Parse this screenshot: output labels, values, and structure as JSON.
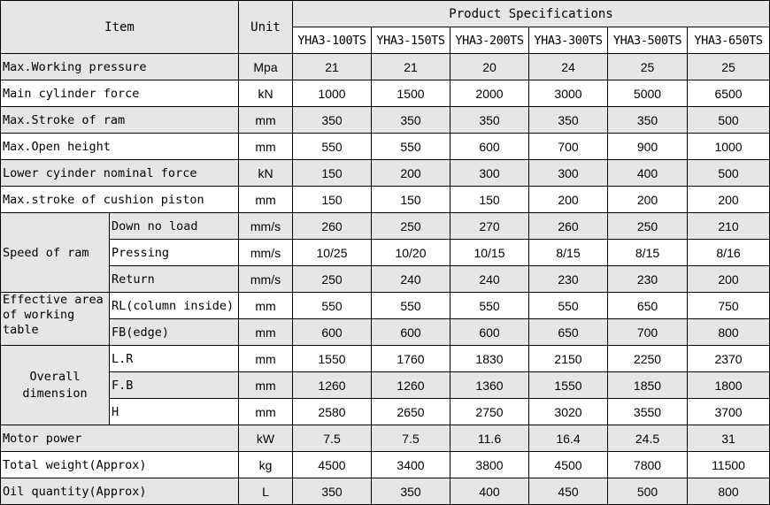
{
  "header": {
    "item": "Item",
    "unit": "Unit",
    "group": "Product Specifications",
    "models": [
      "YHA3-100TS",
      "YHA3-150TS",
      "YHA3-200TS",
      "YHA3-300TS",
      "YHA3-500TS",
      "YHA3-650TS"
    ]
  },
  "rows": [
    {
      "label": "Max.Working pressure",
      "unit": "Mpa",
      "values": [
        "21",
        "21",
        "20",
        "24",
        "25",
        "25"
      ]
    },
    {
      "label": "Main cylinder force",
      "unit": "kN",
      "values": [
        "1000",
        "1500",
        "2000",
        "3000",
        "5000",
        "6500"
      ]
    },
    {
      "label": "Max.Stroke of ram",
      "unit": "mm",
      "values": [
        "350",
        "350",
        "350",
        "350",
        "350",
        "500"
      ]
    },
    {
      "label": "Max.Open height",
      "unit": "mm",
      "values": [
        "550",
        "550",
        "600",
        "700",
        "900",
        "1000"
      ]
    },
    {
      "label": "Lower cyinder nominal force",
      "unit": "kN",
      "values": [
        "150",
        "200",
        "300",
        "300",
        "400",
        "500"
      ]
    },
    {
      "label": "Max.stroke of cushion piston",
      "unit": "mm",
      "values": [
        "150",
        "150",
        "150",
        "200",
        "200",
        "200"
      ]
    }
  ],
  "speed": {
    "label": "Speed of ram",
    "subs": [
      {
        "label": "Down no load",
        "unit": "mm/s",
        "values": [
          "260",
          "250",
          "270",
          "260",
          "250",
          "210"
        ]
      },
      {
        "label": "Pressing",
        "unit": "mm/s",
        "values": [
          "10/25",
          "10/20",
          "10/15",
          "8/15",
          "8/15",
          "8/16"
        ]
      },
      {
        "label": "Return",
        "unit": "mm/s",
        "values": [
          "250",
          "240",
          "240",
          "230",
          "230",
          "200"
        ]
      }
    ]
  },
  "area": {
    "label": "Effective area of working table",
    "subs": [
      {
        "label": "RL(column inside)",
        "unit": "mm",
        "values": [
          "550",
          "550",
          "550",
          "550",
          "650",
          "750"
        ]
      },
      {
        "label": "FB(edge)",
        "unit": "mm",
        "values": [
          "600",
          "600",
          "600",
          "650",
          "700",
          "800"
        ]
      }
    ]
  },
  "overall": {
    "label": "Overall dimension",
    "subs": [
      {
        "label": "L.R",
        "unit": "mm",
        "values": [
          "1550",
          "1760",
          "1830",
          "2150",
          "2250",
          "2370"
        ]
      },
      {
        "label": "F.B",
        "unit": "mm",
        "values": [
          "1260",
          "1260",
          "1360",
          "1550",
          "1850",
          "1800"
        ]
      },
      {
        "label": "H",
        "unit": "mm",
        "values": [
          "2580",
          "2650",
          "2750",
          "3020",
          "3550",
          "3700"
        ]
      }
    ]
  },
  "bottom": [
    {
      "label": "Motor power",
      "unit": "kW",
      "values": [
        "7.5",
        "7.5",
        "11.6",
        "16.4",
        "24.5",
        "31"
      ]
    },
    {
      "label": "Total weight(Approx)",
      "unit": "kg",
      "values": [
        "4500",
        "3400",
        "3800",
        "4500",
        "7800",
        "11500"
      ]
    },
    {
      "label": "Oil quantity(Approx)",
      "unit": "L",
      "values": [
        "350",
        "350",
        "400",
        "450",
        "500",
        "800"
      ]
    }
  ]
}
